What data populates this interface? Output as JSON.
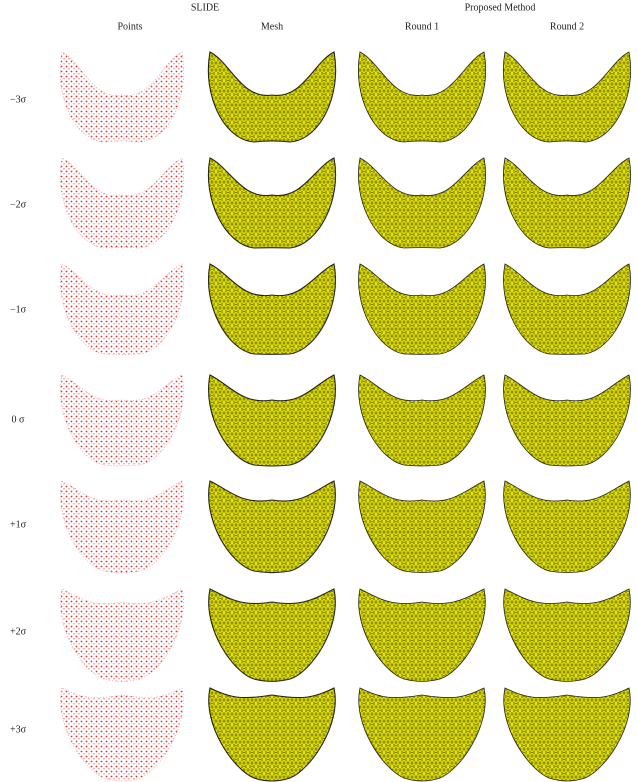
{
  "header": {
    "group_left": "SLIDE",
    "group_right": "Proposed Method",
    "columns": [
      "Points",
      "Mesh",
      "Round 1",
      "Round 2"
    ]
  },
  "rows": [
    "−3σ",
    "−2σ",
    "−1σ",
    "0 σ",
    "+1σ",
    "+2σ",
    "+3σ"
  ]
}
